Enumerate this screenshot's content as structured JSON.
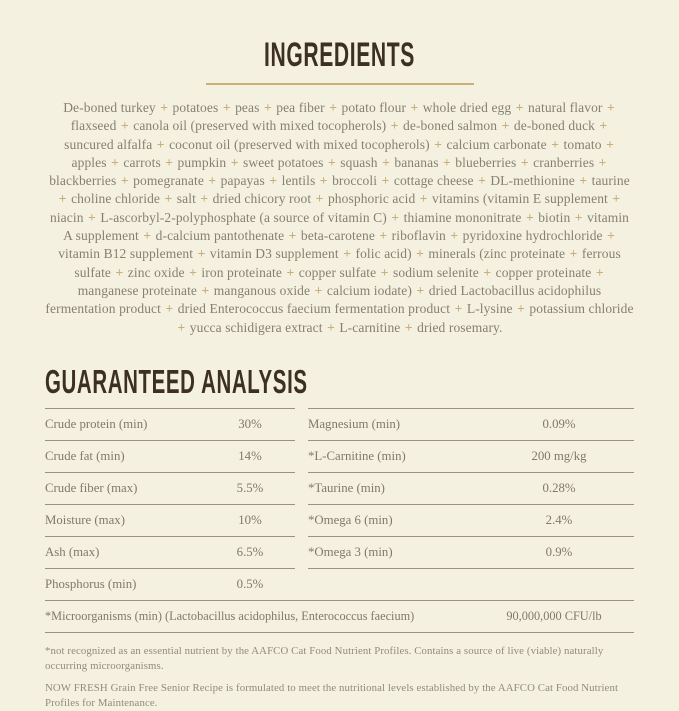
{
  "colors": {
    "background": "#f5f1e1",
    "heading": "#3d2f24",
    "body_text": "#86806f",
    "accent_gold": "#c7ae7a",
    "underline": "#c9b179",
    "table_rule": "#9a937f"
  },
  "ingredients": {
    "title": "INGREDIENTS",
    "text": "De-boned turkey + potatoes + peas + pea fiber + potato flour + whole dried egg + natural flavor + flaxseed + canola oil (preserved with mixed tocopherols) + de-boned salmon + de-boned duck + suncured alfalfa + coconut oil (preserved with mixed tocopherols) + calcium carbonate + tomato + apples + carrots + pumpkin + sweet potatoes + squash + bananas + blueberries + cranberries + blackberries + pomegranate + papayas + lentils + broccoli + cottage cheese + DL-methionine + taurine + choline chloride + salt + dried chicory root + phosphoric acid + vitamins (vitamin E supplement + niacin + L-ascorbyl-2-polyphosphate (a source of vitamin C) + thiamine mononitrate + biotin + vitamin A supplement + d-calcium pantothenate + beta-carotene + riboflavin + pyridoxine hydrochloride + vitamin B12 supplement + vitamin D3 supplement + folic acid) + minerals (zinc proteinate + ferrous sulfate + zinc oxide + iron proteinate + copper sulfate + sodium selenite + copper proteinate + manganese proteinate + manganous oxide + calcium iodate) + dried Lactobacillus acidophilus fermentation product + dried Enterococcus faecium fermentation product + L-lysine + potassium chloride + yucca schidigera extract + L-carnitine + dried rosemary."
  },
  "guaranteed_analysis": {
    "title": "GUARANTEED ANALYSIS",
    "left_rows": [
      {
        "label": "Crude protein (min)",
        "value": "30%"
      },
      {
        "label": "Crude fat (min)",
        "value": "14%"
      },
      {
        "label": "Crude fiber (max)",
        "value": "5.5%"
      },
      {
        "label": "Moisture (max)",
        "value": "10%"
      },
      {
        "label": "Ash (max)",
        "value": "6.5%"
      },
      {
        "label": "Phosphorus (min)",
        "value": "0.5%"
      }
    ],
    "right_rows": [
      {
        "label": "Magnesium (min)",
        "value": "0.09%"
      },
      {
        "label": "*L-Carnitine (min)",
        "value": "200 mg/kg"
      },
      {
        "label": "*Taurine (min)",
        "value": "0.28%"
      },
      {
        "label": "*Omega 6 (min)",
        "value": "2.4%"
      },
      {
        "label": "*Omega 3 (min)",
        "value": "0.9%"
      }
    ],
    "full_width_row": {
      "label": "*Microorganisms (min) (Lactobacillus acidophilus, Enterococcus faecium)",
      "value": "90,000,000 CFU/lb"
    }
  },
  "footnotes": [
    "*not recognized as an essential nutrient by the AAFCO Cat Food Nutrient Profiles. Contains a source of live (viable) naturally occurring microorganisms.",
    "NOW FRESH Grain Free Senior Recipe is formulated to meet the nutritional levels established by the AAFCO Cat Food Nutrient Profiles for Maintenance."
  ]
}
